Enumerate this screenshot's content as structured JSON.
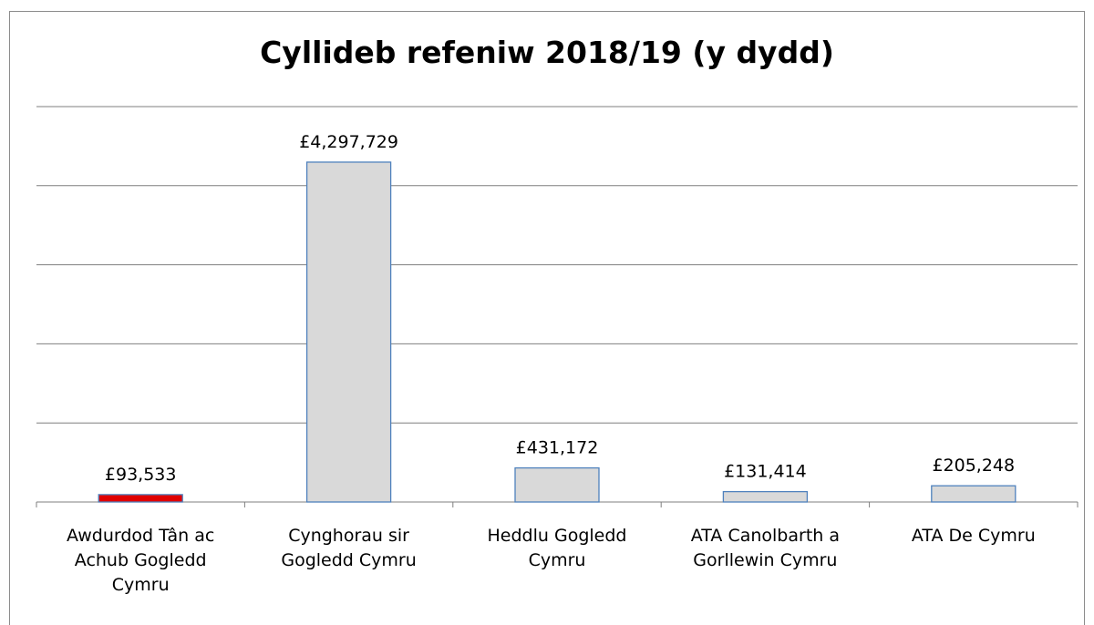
{
  "chart_data": {
    "type": "bar",
    "title": "Cyllideb refeniw 2018/19 (y dydd)",
    "categories": [
      "Awdurdod Tân ac Achub Gogledd Cymru",
      "Cynghorau sir Gogledd Cymru",
      "Heddlu Gogledd Cymru",
      "ATA Canolbarth a Gorllewin Cymru",
      "ATA De Cymru"
    ],
    "category_lines": [
      [
        "Awdurdod Tân ac",
        "Achub Gogledd",
        "Cymru"
      ],
      [
        "Cynghorau sir",
        "Gogledd Cymru"
      ],
      [
        "Heddlu Gogledd",
        "Cymru"
      ],
      [
        "ATA Canolbarth a",
        "Gorllewin Cymru"
      ],
      [
        "ATA De Cymru"
      ]
    ],
    "values": [
      93533,
      4297729,
      431172,
      131414,
      205248
    ],
    "data_labels": [
      "£93,533",
      "£4,297,729",
      "£431,172",
      "£131,414",
      "£205,248"
    ],
    "ylim": [
      0,
      5000000
    ],
    "grid": true,
    "legend": "none",
    "colors": {
      "bar_fill": "#d9d9d9",
      "bar_border": "#4f81bd",
      "highlight_fill": "#e00000",
      "highlight_border": "#4f81bd",
      "grid": "#7f7f7f"
    },
    "highlight_index": 0
  }
}
